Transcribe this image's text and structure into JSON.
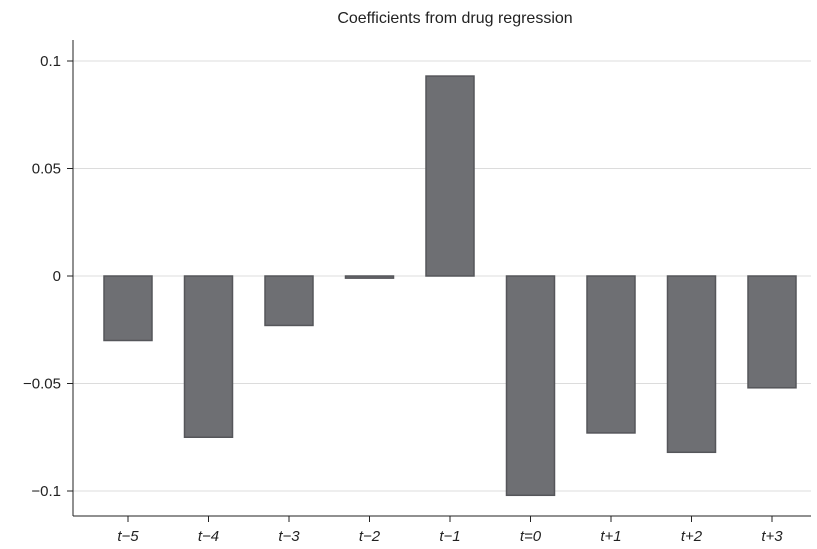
{
  "chart_data": {
    "type": "bar",
    "title": "Coefficients from drug regression",
    "xlabel": "",
    "ylabel": "",
    "categories": [
      "t−5",
      "t−4",
      "t−3",
      "t−2",
      "t−1",
      "t=0",
      "t+1",
      "t+2",
      "t+3"
    ],
    "values": [
      -0.03,
      -0.075,
      -0.023,
      -0.001,
      0.093,
      -0.102,
      -0.073,
      -0.082,
      -0.052
    ],
    "ylim": [
      -0.11,
      0.11
    ],
    "yticks": [
      0.1,
      0.05,
      0,
      -0.05,
      -0.1
    ],
    "ytick_labels": [
      "0.1",
      "0.05",
      "0",
      "−0.05",
      "−0.1"
    ],
    "grid": true,
    "bar_color": "#6e6f73"
  }
}
